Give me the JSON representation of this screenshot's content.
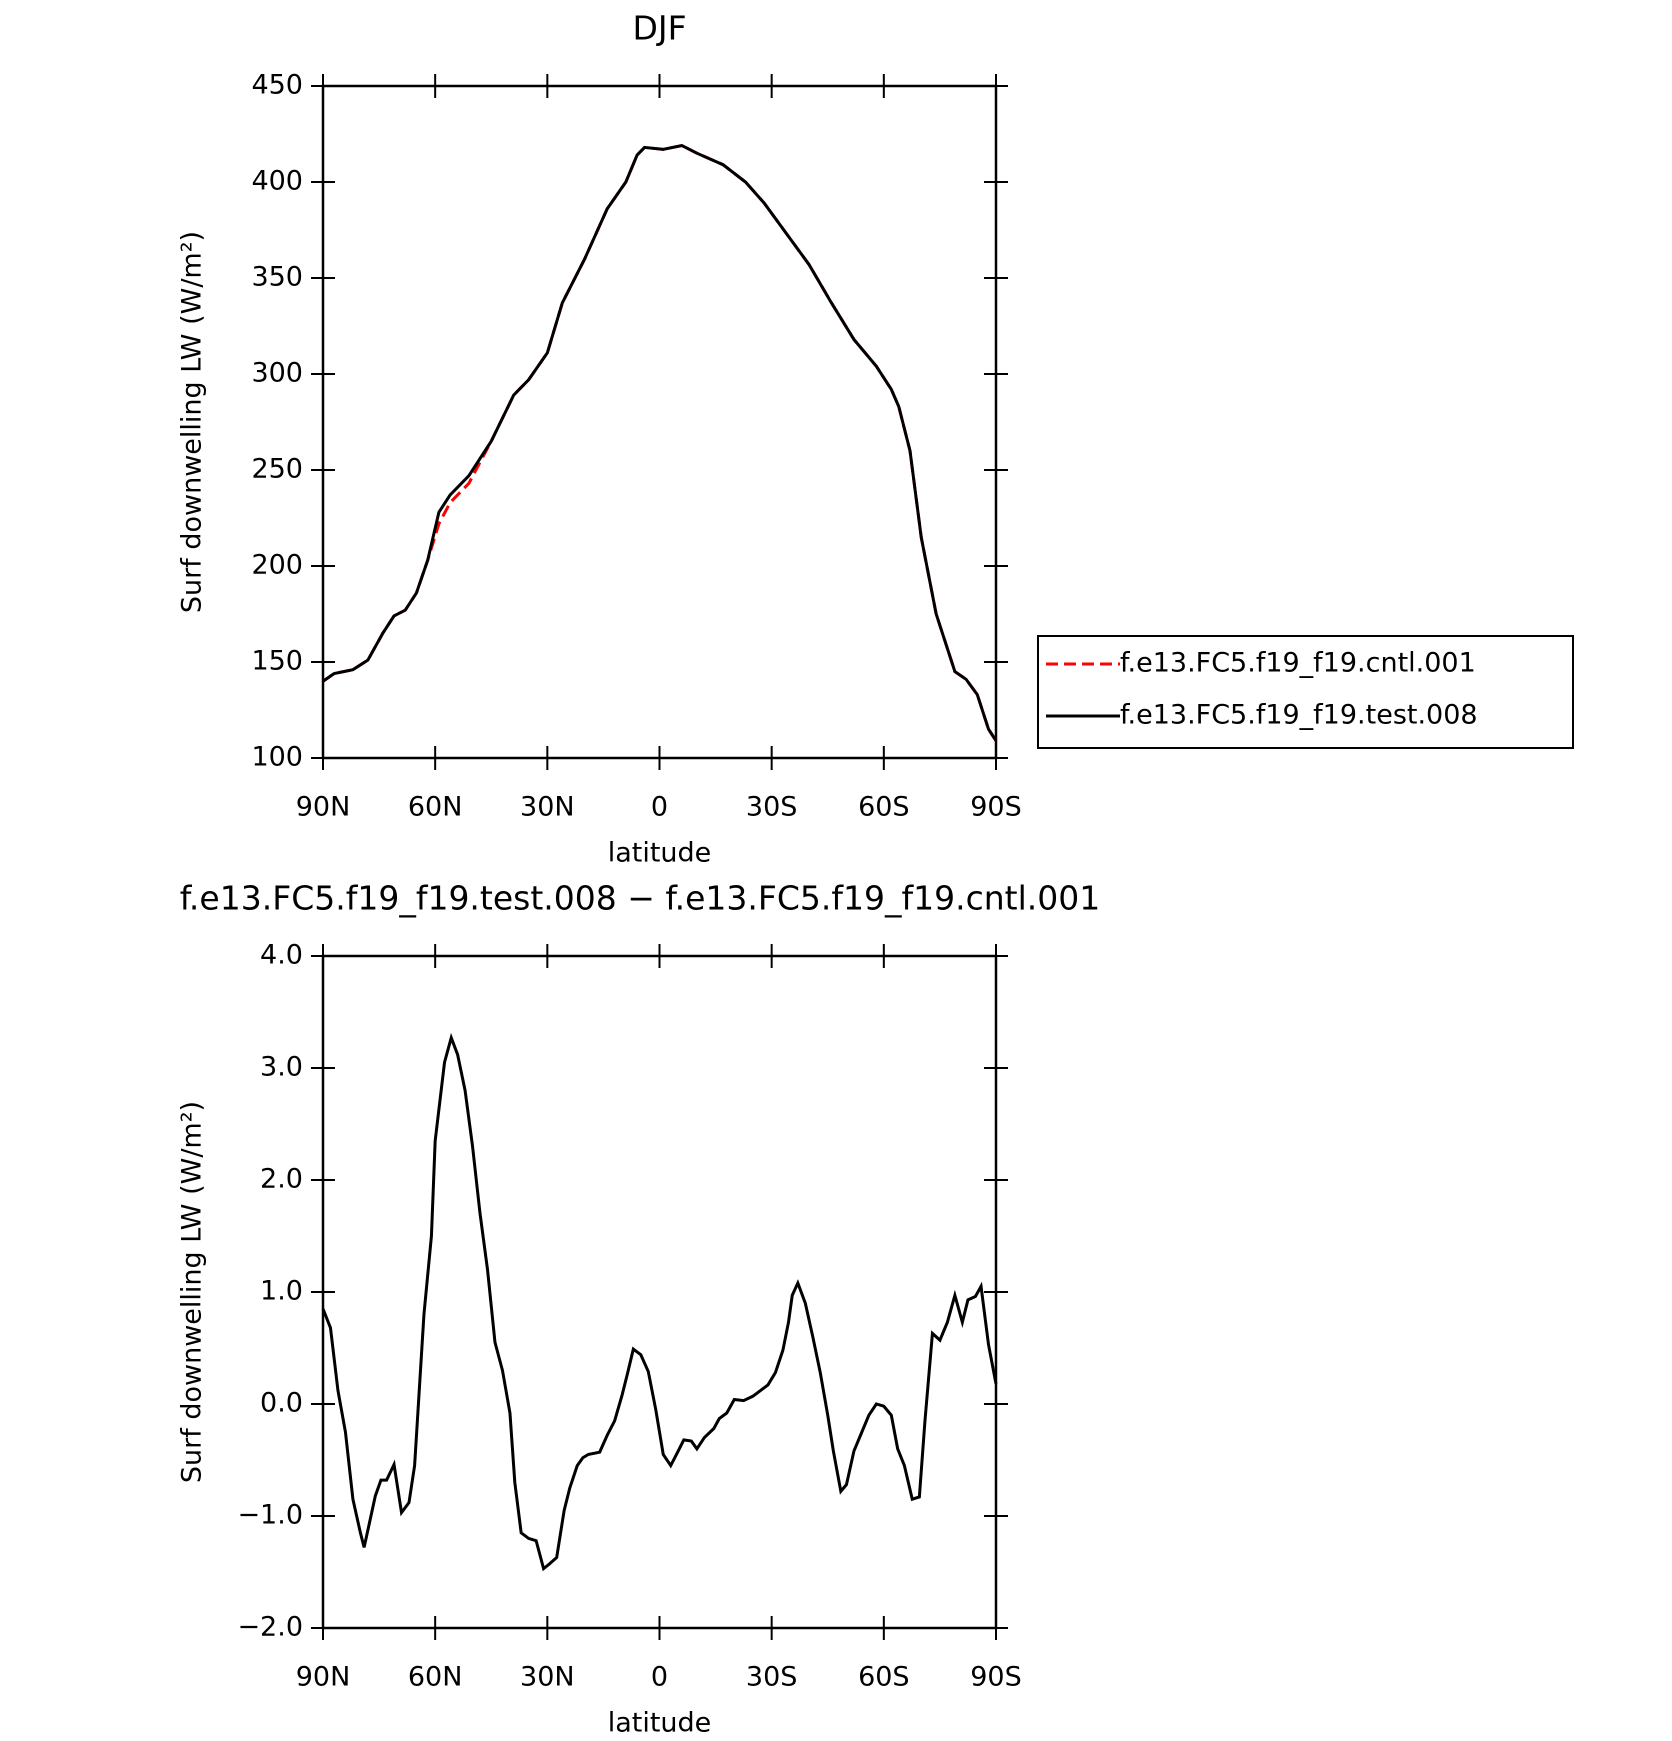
{
  "chart_data": [
    {
      "type": "line",
      "title": "DJF",
      "xlabel": "latitude",
      "ylabel": "Surf downwelling LW (W/m²)",
      "xlim": [
        90,
        -90
      ],
      "xticks": [
        {
          "value": 90,
          "label": "90N"
        },
        {
          "value": 60,
          "label": "60N"
        },
        {
          "value": 30,
          "label": "30N"
        },
        0,
        {
          "value": -30,
          "label": "30S"
        },
        {
          "value": -60,
          "label": "60S"
        },
        {
          "value": -90,
          "label": "90S"
        }
      ],
      "ylim": [
        100,
        450
      ],
      "yticks": [
        100,
        150,
        200,
        250,
        300,
        350,
        400,
        450
      ],
      "legend": "right",
      "x": [
        90,
        87,
        82,
        78,
        74,
        71,
        68,
        65,
        62,
        59,
        56,
        51,
        45,
        39,
        35,
        30,
        26,
        20,
        14,
        9,
        6,
        4,
        -1,
        -6,
        -10,
        -17,
        -23,
        -28,
        -34,
        -40,
        -46,
        -52,
        -58,
        -62,
        -64,
        -67,
        -70,
        -74,
        -79,
        -82,
        -85,
        -88,
        -90
      ],
      "series": [
        {
          "name": "f.e13.FC5.f19_f19.cntl.001",
          "color": "#ff0000",
          "linestyle": "dashed",
          "values": [
            140,
            144,
            146,
            151,
            165,
            174,
            177,
            186,
            203,
            222,
            233,
            243,
            265,
            289,
            297,
            311,
            337,
            360,
            386,
            400,
            414,
            418,
            417,
            419,
            415,
            409,
            400,
            389,
            373,
            357,
            337,
            318,
            304,
            292,
            283,
            260,
            215,
            175,
            145,
            141,
            133,
            115,
            109
          ]
        },
        {
          "name": "f.e13.FC5.f19_f19.test.008",
          "color": "#000000",
          "linestyle": "solid",
          "values": [
            140,
            144,
            146,
            151,
            165,
            174,
            177,
            186,
            203,
            228,
            237,
            247,
            265,
            289,
            297,
            311,
            337,
            360,
            386,
            400,
            414,
            418,
            417,
            419,
            415,
            409,
            400,
            389,
            373,
            357,
            337,
            318,
            304,
            292,
            283,
            260,
            215,
            175,
            145,
            141,
            133,
            115,
            109
          ]
        }
      ]
    },
    {
      "type": "line",
      "title": "f.e13.FC5.f19_f19.test.008 − f.e13.FC5.f19_f19.cntl.001",
      "xlabel": "latitude",
      "ylabel": "Surf downwelling LW (W/m²)",
      "xlim": [
        90,
        -90
      ],
      "xticks": [
        {
          "value": 90,
          "label": "90N"
        },
        {
          "value": 60,
          "label": "60N"
        },
        {
          "value": 30,
          "label": "30N"
        },
        0,
        {
          "value": -30,
          "label": "30S"
        },
        {
          "value": -60,
          "label": "60S"
        },
        {
          "value": -90,
          "label": "90S"
        }
      ],
      "ylim": [
        -2,
        4
      ],
      "yticks": [
        {
          "value": -2,
          "label": "−2.0"
        },
        {
          "value": -1,
          "label": "−1.0"
        },
        {
          "value": 0,
          "label": "0.0"
        },
        {
          "value": 1,
          "label": "1.0"
        },
        {
          "value": 2,
          "label": "2.0"
        },
        {
          "value": 3,
          "label": "3.0"
        },
        {
          "value": 4,
          "label": "4.0"
        }
      ],
      "x": [
        90,
        88,
        86,
        84,
        82,
        80,
        79,
        76,
        74.5,
        73,
        71,
        69,
        67,
        65.5,
        63,
        61,
        60,
        57.5,
        55.7,
        54,
        52,
        50,
        48,
        46,
        44,
        42,
        40,
        38.7,
        37,
        35,
        33,
        31,
        29.5,
        27.5,
        25.5,
        24,
        22,
        20.5,
        19,
        16,
        14,
        12,
        10,
        8.5,
        7,
        5,
        3,
        1,
        -1,
        -3,
        -5,
        -6.5,
        -8.5,
        -10,
        -12,
        -14.5,
        -16,
        -18,
        -20,
        -22.5,
        -25,
        -27,
        -29,
        -31,
        -33,
        -34.5,
        -35.5,
        -37,
        -39,
        -41,
        -43,
        -45,
        -46.5,
        -48.5,
        -50,
        -52,
        -54,
        -56,
        -58,
        -60,
        -62,
        -63.7,
        -65.5,
        -67.6,
        -69.5,
        -71,
        -73,
        -75,
        -77,
        -79,
        -81,
        -82.5,
        -84.5,
        -86,
        -88,
        -90
      ],
      "series": [
        {
          "color": "#000000",
          "linestyle": "solid",
          "values": [
            0.85,
            0.68,
            0.12,
            -0.25,
            -0.85,
            -1.15,
            -1.28,
            -0.82,
            -0.68,
            -0.68,
            -0.54,
            -0.97,
            -0.88,
            -0.55,
            0.8,
            1.5,
            2.35,
            3.05,
            3.27,
            3.12,
            2.8,
            2.3,
            1.7,
            1.2,
            0.55,
            0.3,
            -0.08,
            -0.7,
            -1.15,
            -1.2,
            -1.22,
            -1.47,
            -1.43,
            -1.37,
            -0.95,
            -0.75,
            -0.55,
            -0.48,
            -0.45,
            -0.43,
            -0.28,
            -0.15,
            0.08,
            0.28,
            0.49,
            0.44,
            0.29,
            -0.05,
            -0.45,
            -0.55,
            -0.42,
            -0.32,
            -0.33,
            -0.4,
            -0.3,
            -0.22,
            -0.13,
            -0.08,
            0.04,
            0.03,
            0.07,
            0.12,
            0.17,
            0.28,
            0.48,
            0.73,
            0.97,
            1.08,
            0.9,
            0.6,
            0.28,
            -0.1,
            -0.42,
            -0.78,
            -0.72,
            -0.42,
            -0.26,
            -0.1,
            0.0,
            -0.02,
            -0.1,
            -0.4,
            -0.55,
            -0.85,
            -0.83,
            -0.15,
            0.63,
            0.57,
            0.73,
            0.97,
            0.73,
            0.93,
            0.96,
            1.05,
            0.53,
            0.18
          ]
        }
      ]
    }
  ]
}
